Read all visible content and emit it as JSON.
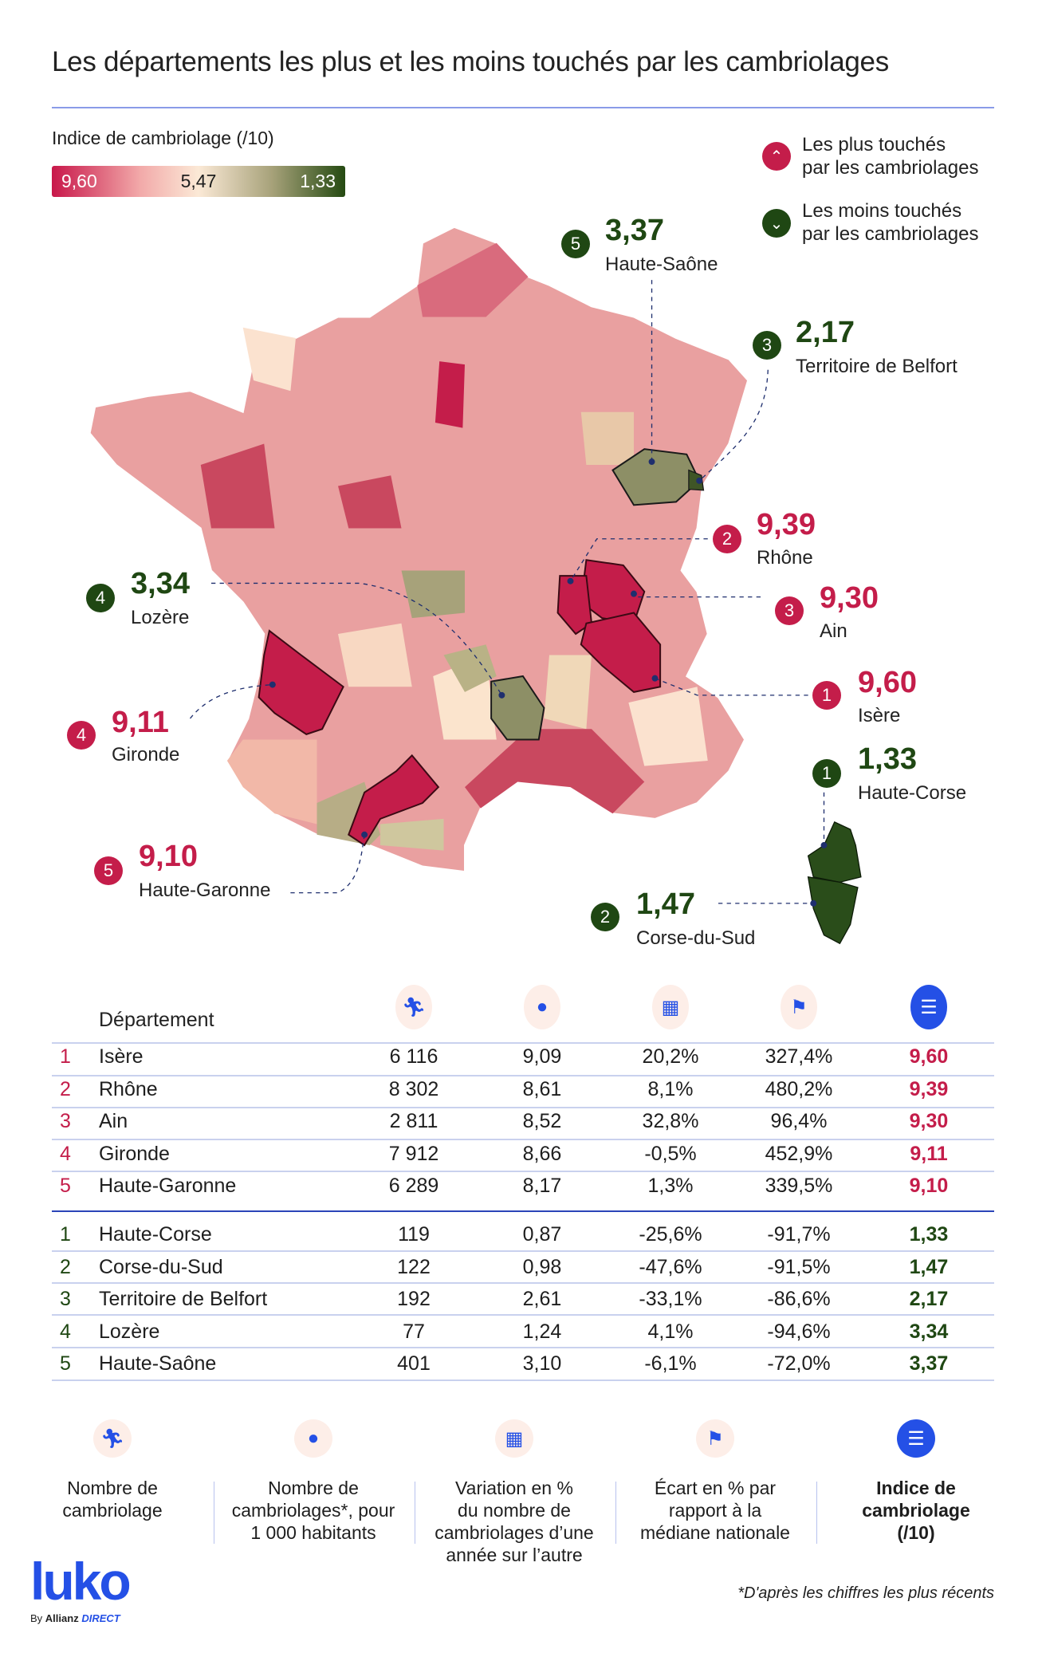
{
  "title": "Les départements les plus et les moins touchés par les cambriolages",
  "legend": {
    "title": "Indice de cambriolage (/10)",
    "scale_max": "9,60",
    "scale_mid": "5,47",
    "scale_min": "1,33",
    "most_label": "Les plus touchés",
    "most_label2": "par les cambriolages",
    "least_label": "Les moins touchés",
    "least_label2": "par les cambriolages",
    "colors": {
      "most": "#c41d4a",
      "least": "#1f4713",
      "accent": "#2450e6"
    }
  },
  "map_labels": {
    "most": [
      {
        "rank": "1",
        "value": "9,60",
        "name": "Isère"
      },
      {
        "rank": "2",
        "value": "9,39",
        "name": "Rhône"
      },
      {
        "rank": "3",
        "value": "9,30",
        "name": "Ain"
      },
      {
        "rank": "4",
        "value": "9,11",
        "name": "Gironde"
      },
      {
        "rank": "5",
        "value": "9,10",
        "name": "Haute-Garonne"
      }
    ],
    "least": [
      {
        "rank": "1",
        "value": "1,33",
        "name": "Haute-Corse"
      },
      {
        "rank": "2",
        "value": "1,47",
        "name": "Corse-du-Sud"
      },
      {
        "rank": "3",
        "value": "2,17",
        "name": "Territoire de Belfort"
      },
      {
        "rank": "4",
        "value": "3,34",
        "name": "Lozère"
      },
      {
        "rank": "5",
        "value": "3,37",
        "name": "Haute-Saône"
      }
    ]
  },
  "table": {
    "header": "Département",
    "column_icons": [
      "runner-icon",
      "person-icon",
      "calendar-icon",
      "french-flag-icon",
      "list-icon"
    ],
    "most": [
      [
        "1",
        "Isère",
        "6 116",
        "9,09",
        "20,2%",
        "327,4%",
        "9,60"
      ],
      [
        "2",
        "Rhône",
        "8 302",
        "8,61",
        "8,1%",
        "480,2%",
        "9,39"
      ],
      [
        "3",
        "Ain",
        "2 811",
        "8,52",
        "32,8%",
        "96,4%",
        "9,30"
      ],
      [
        "4",
        "Gironde",
        "7 912",
        "8,66",
        "-0,5%",
        "452,9%",
        "9,11"
      ],
      [
        "5",
        "Haute-Garonne",
        "6 289",
        "8,17",
        "1,3%",
        "339,5%",
        "9,10"
      ]
    ],
    "least": [
      [
        "1",
        "Haute-Corse",
        "119",
        "0,87",
        "-25,6%",
        "-91,7%",
        "1,33"
      ],
      [
        "2",
        "Corse-du-Sud",
        "122",
        "0,98",
        "-47,6%",
        "-91,5%",
        "1,47"
      ],
      [
        "3",
        "Territoire de Belfort",
        "192",
        "2,61",
        "-33,1%",
        "-86,6%",
        "2,17"
      ],
      [
        "4",
        "Lozère",
        "77",
        "1,24",
        "4,1%",
        "-94,6%",
        "3,34"
      ],
      [
        "5",
        "Haute-Saône",
        "401",
        "3,10",
        "-6,1%",
        "-72,0%",
        "3,37"
      ]
    ]
  },
  "footer_legend": [
    {
      "icon": "runner-icon",
      "lines": [
        "Nombre de",
        "cambriolage"
      ]
    },
    {
      "icon": "person-icon",
      "lines": [
        "Nombre de",
        "cambriolages*, pour",
        "1 000 habitants"
      ]
    },
    {
      "icon": "calendar-icon",
      "lines": [
        "Variation en %",
        "du nombre de",
        "cambriolages d’une",
        "année sur l’autre"
      ]
    },
    {
      "icon": "french-flag-icon",
      "lines": [
        "Écart en % par",
        "rapport à la",
        "médiane nationale"
      ]
    },
    {
      "icon": "list-icon",
      "lines": [
        "Indice de",
        "cambriolage",
        "(/10)"
      ]
    }
  ],
  "brand": {
    "logo": "luko",
    "by": "By",
    "partner": "Allianz",
    "partner2": "DIRECT"
  },
  "footnote": "*D'après les chiffres les plus récents"
}
